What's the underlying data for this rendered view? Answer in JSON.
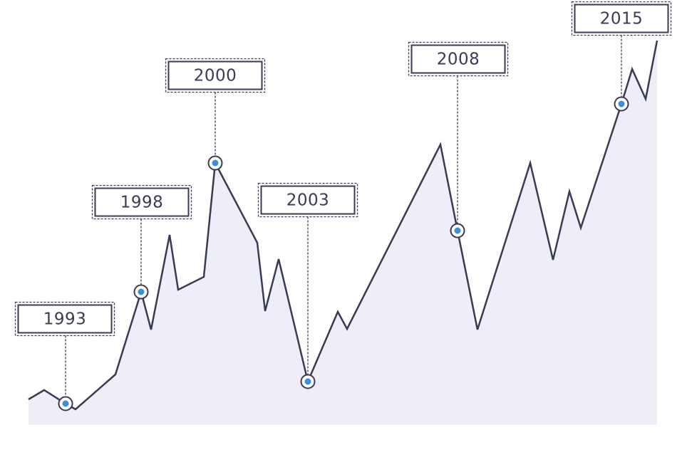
{
  "annotations": [
    {
      "label": "1993"
    },
    {
      "label": "1998"
    },
    {
      "label": "2000"
    },
    {
      "label": "2003"
    },
    {
      "label": "2008"
    },
    {
      "label": "2015"
    }
  ]
}
